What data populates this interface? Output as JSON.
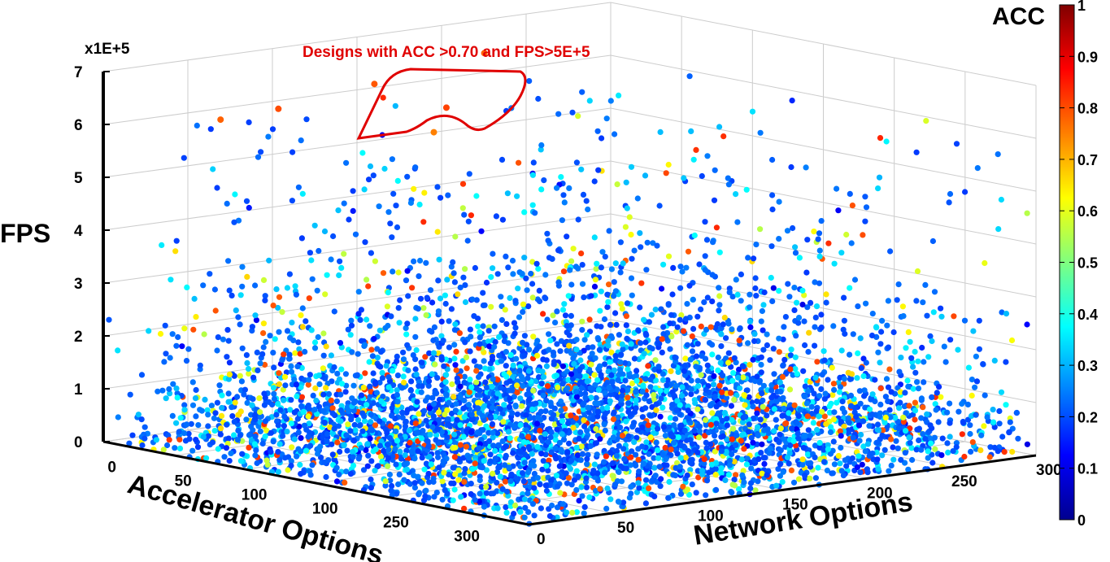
{
  "chart_data": {
    "type": "scatter",
    "subtype": "3d-scatter",
    "title": "",
    "annotation": "Designs with ACC >0.70 and FPS>5E+5",
    "xlabel": "Accelerator Options",
    "ylabel": "Network Options",
    "zlabel": "FPS",
    "z_multiplier_label": "x1E+5",
    "colorbar_label": "ACC",
    "colormap": "jet",
    "x_tick_labels": [
      "0",
      "50",
      "100",
      "100",
      "250",
      "300"
    ],
    "y_tick_labels": [
      "0",
      "50",
      "100",
      "150",
      "200",
      "250",
      "300"
    ],
    "z_tick_labels": [
      "0",
      "1",
      "2",
      "3",
      "4",
      "5",
      "6",
      "7"
    ],
    "colorbar_tick_labels": [
      "0",
      "0.1",
      "0.2",
      "0.3",
      "0.4",
      "0.5",
      "0.6",
      "0.7",
      "0.8",
      "0.9",
      "1"
    ],
    "xlim": [
      0,
      300
    ],
    "ylim": [
      0,
      300
    ],
    "zlim": [
      0,
      7
    ],
    "clim": [
      0,
      1
    ],
    "grid": true,
    "highlighted_points": [
      {
        "x": 35,
        "y": 40,
        "z": 6.1,
        "acc": 0.78
      },
      {
        "x": 40,
        "y": 70,
        "z": 6.2,
        "acc": 0.8
      },
      {
        "x": 60,
        "y": 110,
        "z": 6.6,
        "acc": 0.79
      },
      {
        "x": 75,
        "y": 140,
        "z": 6.1,
        "acc": 0.81
      },
      {
        "x": 60,
        "y": 175,
        "z": 6.9,
        "acc": 0.78
      },
      {
        "x": 90,
        "y": 120,
        "z": 5.8,
        "acc": 0.75
      }
    ],
    "notes_on_data": "Dense cloud of roughly 20000 designs; most FPS below 1.5E+5 and ACC mostly 0.2-0.35, sparse outliers up to about 6.9E+5"
  },
  "colors": {
    "annotation": "#e00000",
    "axis": "#000000",
    "grid": "#cccccc"
  }
}
